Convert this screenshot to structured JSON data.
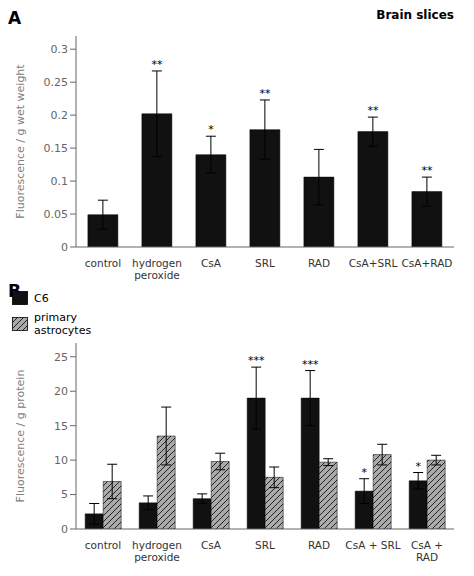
{
  "chart_data": [
    {
      "type": "bar",
      "panel_label": "A",
      "title": "Brain slices",
      "ylabel": "Fluorescence / g wet weight",
      "categories": [
        "control",
        "hydrogen\nperoxide",
        "CsA",
        "SRL",
        "RAD",
        "CsA+SRL",
        "CsA+RAD"
      ],
      "values": [
        0.049,
        0.202,
        0.14,
        0.178,
        0.106,
        0.175,
        0.084
      ],
      "errors": [
        0.022,
        0.065,
        0.028,
        0.045,
        0.042,
        0.022,
        0.022
      ],
      "significance": [
        null,
        "**",
        "*",
        "**",
        null,
        "**",
        "**"
      ],
      "color": "#111111",
      "ylim": [
        0,
        0.32
      ],
      "yticks": [
        0,
        0.05,
        0.1,
        0.15,
        0.2,
        0.25,
        0.3
      ]
    },
    {
      "type": "bar",
      "panel_label": "B",
      "ylabel": "Fluorescence / g protein",
      "categories": [
        "control",
        "hydrogen\nperoxide",
        "CsA",
        "SRL",
        "RAD",
        "CsA + SRL",
        "CsA +\nRAD"
      ],
      "series": [
        {
          "name": "C6",
          "color": "#111111",
          "values": [
            2.2,
            3.8,
            4.4,
            19.0,
            19.0,
            5.5,
            7.0
          ],
          "errors": [
            1.5,
            1.0,
            0.7,
            4.5,
            4.0,
            1.8,
            1.2
          ],
          "significance": [
            null,
            null,
            null,
            "***",
            "***",
            "*",
            "*"
          ]
        },
        {
          "name": "primary\nastrocytes",
          "color": "#aaaaaa",
          "values": [
            6.9,
            13.5,
            9.8,
            7.5,
            9.7,
            10.8,
            10.0
          ],
          "errors": [
            2.5,
            4.2,
            1.2,
            1.5,
            0.5,
            1.5,
            0.7
          ]
        }
      ],
      "ylim": [
        0,
        27
      ],
      "yticks": [
        0,
        5,
        10,
        15,
        20,
        25
      ],
      "legend": "upper right"
    }
  ]
}
